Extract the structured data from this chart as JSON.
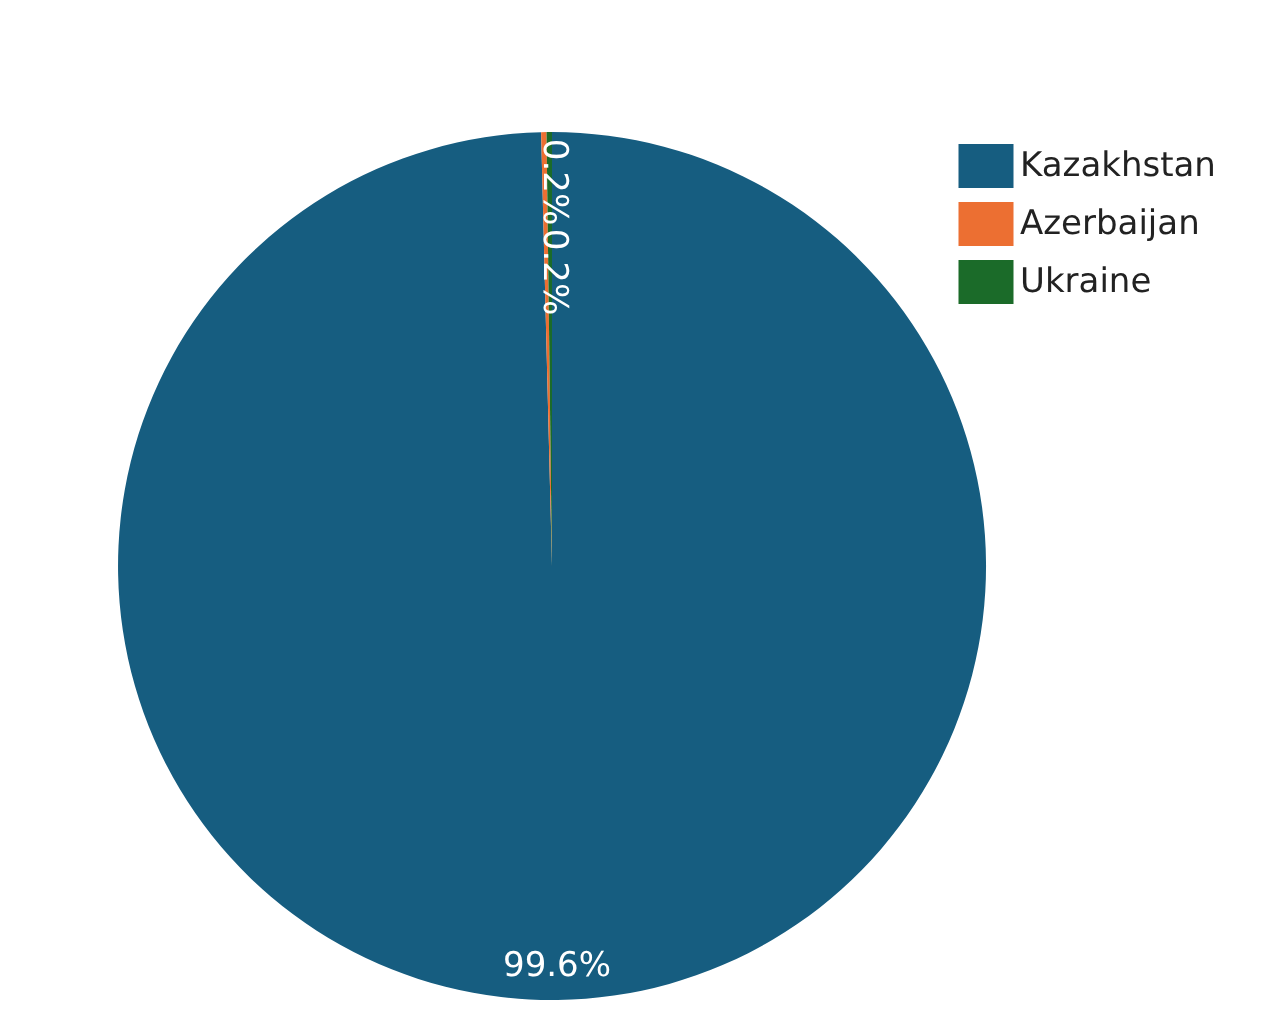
{
  "chart_data": {
    "type": "pie",
    "categories": [
      "Kazakhstan",
      "Azerbaijan",
      "Ukraine"
    ],
    "values": [
      99.6,
      0.2,
      0.2
    ],
    "colors": [
      "#165d80",
      "#ec6f32",
      "#1b6b29"
    ],
    "value_labels": [
      "99.6%",
      "0.2%",
      "0.2%"
    ],
    "legend": "top right"
  }
}
